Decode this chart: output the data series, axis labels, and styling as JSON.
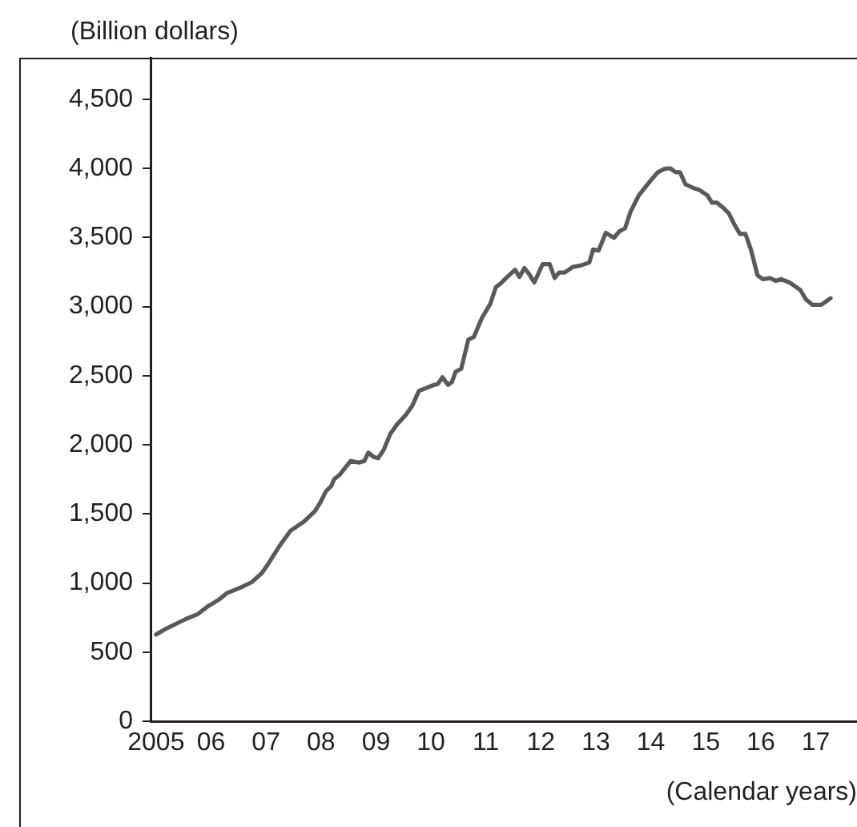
{
  "chart_data": {
    "type": "line",
    "xlabel": "(Calendar years)",
    "ylabel": "(Billion dollars)",
    "xlim": [
      2004.9,
      2017.75
    ],
    "ylim": [
      0,
      4800
    ],
    "xticks": [
      {
        "value": 2005,
        "label": "2005"
      },
      {
        "value": 2006,
        "label": "06"
      },
      {
        "value": 2007,
        "label": "07"
      },
      {
        "value": 2008,
        "label": "08"
      },
      {
        "value": 2009,
        "label": "09"
      },
      {
        "value": 2010,
        "label": "10"
      },
      {
        "value": 2011,
        "label": "11"
      },
      {
        "value": 2012,
        "label": "12"
      },
      {
        "value": 2013,
        "label": "13"
      },
      {
        "value": 2014,
        "label": "14"
      },
      {
        "value": 2015,
        "label": "15"
      },
      {
        "value": 2016,
        "label": "16"
      },
      {
        "value": 2017,
        "label": "17"
      }
    ],
    "yticks": [
      {
        "value": 0,
        "label": "0"
      },
      {
        "value": 500,
        "label": "500"
      },
      {
        "value": 1000,
        "label": "1,000"
      },
      {
        "value": 1500,
        "label": "1,500"
      },
      {
        "value": 2000,
        "label": "2,000"
      },
      {
        "value": 2500,
        "label": "2,500"
      },
      {
        "value": 3000,
        "label": "3,000"
      },
      {
        "value": 3500,
        "label": "3,500"
      },
      {
        "value": 4000,
        "label": "4,000"
      },
      {
        "value": 4500,
        "label": "4,500"
      }
    ],
    "grid": false,
    "legend": false,
    "marker": "none",
    "line_style": "solid",
    "series": [
      {
        "color": "#595959",
        "x": [
          2005.0,
          2005.19,
          2005.54,
          2005.76,
          2005.94,
          2006.14,
          2006.29,
          2006.54,
          2006.74,
          2006.92,
          2007.04,
          2007.24,
          2007.44,
          2007.69,
          2007.89,
          2007.99,
          2008.09,
          2008.19,
          2008.24,
          2008.34,
          2008.54,
          2008.69,
          2008.79,
          2008.86,
          2008.96,
          2009.04,
          2009.14,
          2009.26,
          2009.39,
          2009.54,
          2009.66,
          2009.78,
          2010.03,
          2010.13,
          2010.21,
          2010.31,
          2010.38,
          2010.45,
          2010.55,
          2010.68,
          2010.78,
          2010.93,
          2011.08,
          2011.18,
          2011.28,
          2011.38,
          2011.53,
          2011.61,
          2011.7,
          2011.78,
          2011.88,
          2012.03,
          2012.16,
          2012.25,
          2012.33,
          2012.43,
          2012.58,
          2012.73,
          2012.88,
          2012.95,
          2013.05,
          2013.18,
          2013.33,
          2013.43,
          2013.53,
          2013.63,
          2013.78,
          2013.98,
          2014.13,
          2014.25,
          2014.35,
          2014.45,
          2014.53,
          2014.63,
          2014.78,
          2014.88,
          2015.03,
          2015.11,
          2015.2,
          2015.32,
          2015.42,
          2015.52,
          2015.62,
          2015.72,
          2015.82,
          2015.94,
          2016.04,
          2016.17,
          2016.27,
          2016.37,
          2016.52,
          2016.72,
          2016.82,
          2016.94,
          2017.1,
          2017.27
        ],
        "values": [
          627,
          671,
          739,
          775,
          831,
          879,
          927,
          967,
          1006,
          1070,
          1138,
          1265,
          1376,
          1444,
          1520,
          1584,
          1663,
          1703,
          1751,
          1783,
          1883,
          1871,
          1883,
          1943,
          1911,
          1903,
          1963,
          2078,
          2150,
          2214,
          2282,
          2389,
          2429,
          2441,
          2489,
          2433,
          2453,
          2529,
          2549,
          2760,
          2780,
          2920,
          3020,
          3139,
          3171,
          3211,
          3266,
          3214,
          3278,
          3238,
          3174,
          3306,
          3306,
          3206,
          3246,
          3246,
          3286,
          3298,
          3318,
          3413,
          3405,
          3533,
          3497,
          3545,
          3565,
          3685,
          3804,
          3904,
          3972,
          3996,
          4000,
          3972,
          3972,
          3884,
          3856,
          3844,
          3804,
          3752,
          3752,
          3713,
          3673,
          3593,
          3525,
          3525,
          3413,
          3226,
          3198,
          3206,
          3186,
          3198,
          3174,
          3119,
          3052,
          3012,
          3012,
          3060
        ]
      }
    ]
  }
}
